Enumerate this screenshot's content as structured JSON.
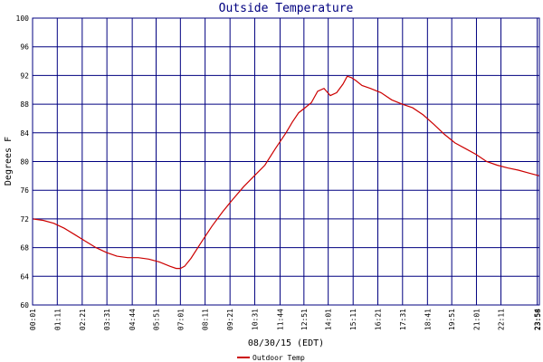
{
  "chart_data": {
    "type": "line",
    "title": "Outside Temperature",
    "ylabel": "Degrees F",
    "xlabel": "08/30/15 (EDT)",
    "ylim": [
      60,
      100
    ],
    "yticks": [
      60,
      64,
      68,
      72,
      76,
      80,
      84,
      88,
      92,
      96,
      100
    ],
    "xlim": [
      0,
      24
    ],
    "grid": true,
    "legend_position": "bottom-left",
    "xtick_labels": [
      {
        "x": 0.0,
        "label": "00:01"
      },
      {
        "x": 1.17,
        "label": "01:11"
      },
      {
        "x": 2.35,
        "label": "02:21"
      },
      {
        "x": 3.52,
        "label": "03:31"
      },
      {
        "x": 4.72,
        "label": "04:44"
      },
      {
        "x": 5.85,
        "label": "05:51"
      },
      {
        "x": 7.0,
        "label": "07:01"
      },
      {
        "x": 8.17,
        "label": "08:11"
      },
      {
        "x": 9.35,
        "label": "09:21"
      },
      {
        "x": 10.52,
        "label": "10:31"
      },
      {
        "x": 11.72,
        "label": "11:44"
      },
      {
        "x": 12.85,
        "label": "12:51"
      },
      {
        "x": 14.0,
        "label": "14:01"
      },
      {
        "x": 15.18,
        "label": "15:11"
      },
      {
        "x": 16.35,
        "label": "16:21"
      },
      {
        "x": 17.52,
        "label": "17:31"
      },
      {
        "x": 18.7,
        "label": "18:41"
      },
      {
        "x": 19.85,
        "label": "19:51"
      },
      {
        "x": 21.02,
        "label": "21:01"
      },
      {
        "x": 22.18,
        "label": "22:11"
      },
      {
        "x": 23.9,
        "label": "23:54"
      },
      {
        "x": 24.0,
        "label": "23:58"
      }
    ],
    "series": [
      {
        "name": "Outdoor Temp",
        "color": "#cc0000",
        "x": [
          0.0,
          0.5,
          1.0,
          1.5,
          2.0,
          2.5,
          3.0,
          3.5,
          4.0,
          4.5,
          5.0,
          5.5,
          6.0,
          6.5,
          6.8,
          7.0,
          7.2,
          7.5,
          8.0,
          8.5,
          9.0,
          9.5,
          10.0,
          10.5,
          11.0,
          11.5,
          12.0,
          12.3,
          12.6,
          12.9,
          13.2,
          13.5,
          13.8,
          14.1,
          14.4,
          14.7,
          14.9,
          15.1,
          15.3,
          15.6,
          16.0,
          16.5,
          17.0,
          17.5,
          18.0,
          18.5,
          19.0,
          19.5,
          20.0,
          20.5,
          21.0,
          21.5,
          22.0,
          22.5,
          23.0,
          23.5,
          24.0
        ],
        "y": [
          72.0,
          71.8,
          71.4,
          70.7,
          69.8,
          68.9,
          68.0,
          67.3,
          66.8,
          66.6,
          66.6,
          66.4,
          66.0,
          65.4,
          65.1,
          65.1,
          65.4,
          66.5,
          68.8,
          71.0,
          73.0,
          74.8,
          76.5,
          78.0,
          79.5,
          81.8,
          84.0,
          85.5,
          86.8,
          87.5,
          88.2,
          89.8,
          90.2,
          89.2,
          89.6,
          90.8,
          91.9,
          91.7,
          91.3,
          90.6,
          90.2,
          89.6,
          88.6,
          88.0,
          87.5,
          86.5,
          85.2,
          83.8,
          82.6,
          81.8,
          81.0,
          80.0,
          79.5,
          79.1,
          78.8,
          78.4,
          78.0
        ]
      }
    ]
  }
}
